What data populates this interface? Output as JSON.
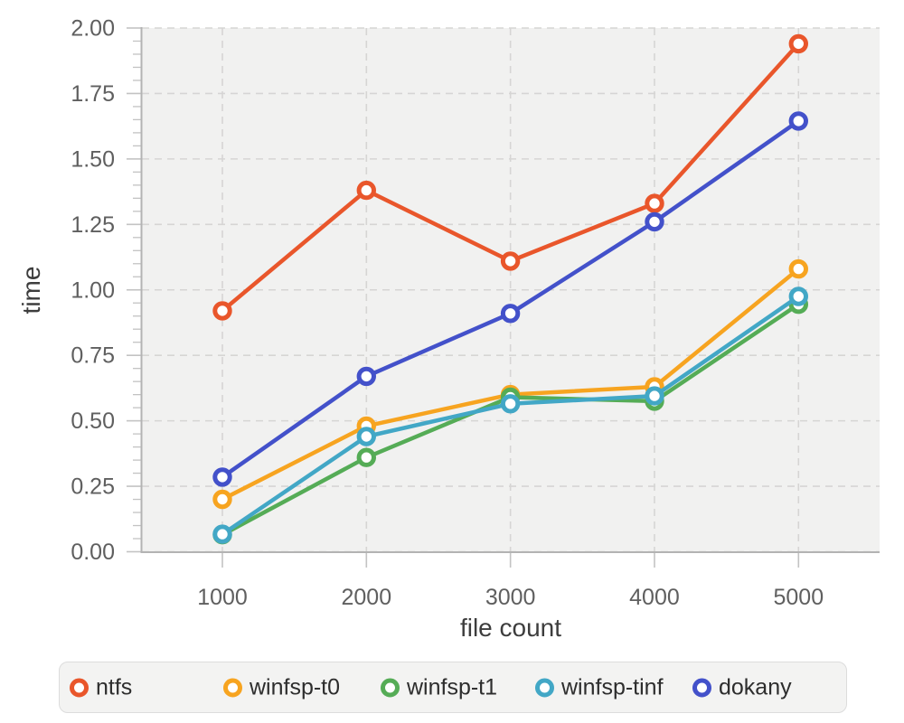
{
  "figure": {
    "background": "#ffffff",
    "panel_background": "#f1f1f0",
    "gridline_color": "#d6d5d4",
    "axis_line_color": "#b3b3b3",
    "tick_mark_color": "#c3c3c3",
    "tick_label_color": "#5f5f5f",
    "axis_title_color": "#3d3d3d",
    "legend_text_color": "#2d2d2d"
  },
  "chart_data": {
    "type": "line",
    "title": "",
    "xlabel": "file count",
    "ylabel": "time",
    "x": [
      1000,
      2000,
      3000,
      4000,
      5000
    ],
    "x_tick_labels": [
      "1000",
      "2000",
      "3000",
      "4000",
      "5000"
    ],
    "y_ticks": [
      0.0,
      0.25,
      0.5,
      0.75,
      1.0,
      1.25,
      1.5,
      1.75,
      2.0
    ],
    "y_tick_labels": [
      "0.00",
      "0.25",
      "0.50",
      "0.75",
      "1.00",
      "1.25",
      "1.50",
      "1.75",
      "2.00"
    ],
    "ylim": [
      0,
      2
    ],
    "y_minor_tick_step": 0.05,
    "grid": "dashed-major-both-axes",
    "legend_position": "bottom",
    "marker_style": "open-circle",
    "series": [
      {
        "name": "ntfs",
        "color": "#e9562b",
        "values": [
          0.92,
          1.38,
          1.11,
          1.33,
          1.94
        ]
      },
      {
        "name": "winfsp-t0",
        "color": "#f7a420",
        "values": [
          0.2,
          0.48,
          0.6,
          0.63,
          1.08
        ]
      },
      {
        "name": "winfsp-t1",
        "color": "#55ac56",
        "values": [
          0.065,
          0.36,
          0.59,
          0.575,
          0.945
        ]
      },
      {
        "name": "winfsp-tinf",
        "color": "#42a7c6",
        "values": [
          0.067,
          0.44,
          0.565,
          0.595,
          0.975
        ]
      },
      {
        "name": "dokany",
        "color": "#4351ca",
        "values": [
          0.285,
          0.67,
          0.91,
          1.26,
          1.645
        ]
      }
    ]
  }
}
